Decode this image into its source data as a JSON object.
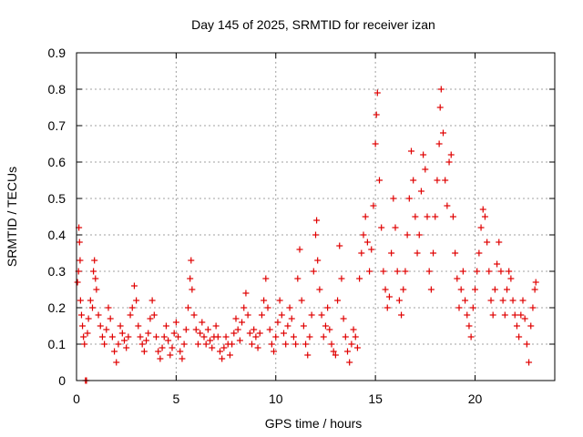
{
  "chart_data": {
    "type": "scatter",
    "title": "Day 145 of 2025, SRMTID for receiver izan",
    "xlabel": "GPS time / hours",
    "ylabel": "SRMTID / TECUs",
    "xlim": [
      0,
      24
    ],
    "ylim": [
      0,
      0.9
    ],
    "xticks": [
      0,
      5,
      10,
      15,
      20
    ],
    "yticks": [
      0,
      0.1,
      0.2,
      0.3,
      0.4,
      0.5,
      0.6,
      0.7,
      0.8,
      0.9
    ],
    "x_tick_labels": [
      "0",
      "5",
      "10",
      "15",
      "20"
    ],
    "y_tick_labels": [
      "0",
      "0.1",
      "0.2",
      "0.3",
      "0.4",
      "0.5",
      "0.6",
      "0.7",
      "0.8",
      "0.9"
    ],
    "grid": true,
    "marker": "+",
    "color": "#e00000",
    "series": [
      {
        "name": "SRMTID",
        "points": [
          [
            0.05,
            0.27
          ],
          [
            0.1,
            0.3
          ],
          [
            0.12,
            0.42
          ],
          [
            0.15,
            0.38
          ],
          [
            0.18,
            0.33
          ],
          [
            0.2,
            0.22
          ],
          [
            0.25,
            0.18
          ],
          [
            0.3,
            0.15
          ],
          [
            0.35,
            0.12
          ],
          [
            0.4,
            0.1
          ],
          [
            0.45,
            0.0
          ],
          [
            0.5,
            0.0
          ],
          [
            0.55,
            0.13
          ],
          [
            0.6,
            0.17
          ],
          [
            0.7,
            0.22
          ],
          [
            0.8,
            0.2
          ],
          [
            0.85,
            0.3
          ],
          [
            0.9,
            0.33
          ],
          [
            0.95,
            0.28
          ],
          [
            1.0,
            0.25
          ],
          [
            1.1,
            0.18
          ],
          [
            1.2,
            0.15
          ],
          [
            1.3,
            0.12
          ],
          [
            1.4,
            0.1
          ],
          [
            1.5,
            0.14
          ],
          [
            1.6,
            0.2
          ],
          [
            1.7,
            0.17
          ],
          [
            1.8,
            0.12
          ],
          [
            1.9,
            0.08
          ],
          [
            2.0,
            0.05
          ],
          [
            2.1,
            0.1
          ],
          [
            2.2,
            0.15
          ],
          [
            2.3,
            0.13
          ],
          [
            2.4,
            0.11
          ],
          [
            2.5,
            0.09
          ],
          [
            2.6,
            0.12
          ],
          [
            2.7,
            0.18
          ],
          [
            2.8,
            0.2
          ],
          [
            2.9,
            0.26
          ],
          [
            3.0,
            0.22
          ],
          [
            3.1,
            0.15
          ],
          [
            3.2,
            0.12
          ],
          [
            3.3,
            0.1
          ],
          [
            3.4,
            0.08
          ],
          [
            3.5,
            0.11
          ],
          [
            3.6,
            0.13
          ],
          [
            3.7,
            0.17
          ],
          [
            3.8,
            0.22
          ],
          [
            3.9,
            0.18
          ],
          [
            4.0,
            0.12
          ],
          [
            4.1,
            0.08
          ],
          [
            4.2,
            0.06
          ],
          [
            4.3,
            0.09
          ],
          [
            4.4,
            0.12
          ],
          [
            4.5,
            0.15
          ],
          [
            4.6,
            0.11
          ],
          [
            4.7,
            0.07
          ],
          [
            4.8,
            0.09
          ],
          [
            4.9,
            0.13
          ],
          [
            5.0,
            0.16
          ],
          [
            5.1,
            0.12
          ],
          [
            5.2,
            0.08
          ],
          [
            5.3,
            0.06
          ],
          [
            5.4,
            0.1
          ],
          [
            5.5,
            0.14
          ],
          [
            5.6,
            0.2
          ],
          [
            5.7,
            0.28
          ],
          [
            5.75,
            0.33
          ],
          [
            5.8,
            0.25
          ],
          [
            5.9,
            0.18
          ],
          [
            6.0,
            0.14
          ],
          [
            6.1,
            0.1
          ],
          [
            6.2,
            0.13
          ],
          [
            6.3,
            0.16
          ],
          [
            6.4,
            0.12
          ],
          [
            6.5,
            0.1
          ],
          [
            6.6,
            0.14
          ],
          [
            6.7,
            0.11
          ],
          [
            6.8,
            0.09
          ],
          [
            6.9,
            0.12
          ],
          [
            7.0,
            0.15
          ],
          [
            7.1,
            0.12
          ],
          [
            7.2,
            0.08
          ],
          [
            7.3,
            0.06
          ],
          [
            7.4,
            0.09
          ],
          [
            7.5,
            0.12
          ],
          [
            7.6,
            0.1
          ],
          [
            7.7,
            0.07
          ],
          [
            7.8,
            0.1
          ],
          [
            7.9,
            0.13
          ],
          [
            8.0,
            0.17
          ],
          [
            8.1,
            0.14
          ],
          [
            8.2,
            0.11
          ],
          [
            8.3,
            0.16
          ],
          [
            8.4,
            0.2
          ],
          [
            8.5,
            0.24
          ],
          [
            8.6,
            0.18
          ],
          [
            8.7,
            0.13
          ],
          [
            8.8,
            0.1
          ],
          [
            8.9,
            0.14
          ],
          [
            9.0,
            0.12
          ],
          [
            9.1,
            0.09
          ],
          [
            9.2,
            0.13
          ],
          [
            9.3,
            0.18
          ],
          [
            9.4,
            0.22
          ],
          [
            9.5,
            0.28
          ],
          [
            9.6,
            0.2
          ],
          [
            9.7,
            0.14
          ],
          [
            9.8,
            0.1
          ],
          [
            9.9,
            0.08
          ],
          [
            10.0,
            0.12
          ],
          [
            10.1,
            0.16
          ],
          [
            10.2,
            0.22
          ],
          [
            10.3,
            0.18
          ],
          [
            10.4,
            0.13
          ],
          [
            10.5,
            0.1
          ],
          [
            10.6,
            0.15
          ],
          [
            10.7,
            0.2
          ],
          [
            10.8,
            0.17
          ],
          [
            10.9,
            0.12
          ],
          [
            11.0,
            0.1
          ],
          [
            11.1,
            0.28
          ],
          [
            11.2,
            0.36
          ],
          [
            11.3,
            0.22
          ],
          [
            11.4,
            0.15
          ],
          [
            11.5,
            0.1
          ],
          [
            11.6,
            0.07
          ],
          [
            11.7,
            0.12
          ],
          [
            11.8,
            0.18
          ],
          [
            11.9,
            0.3
          ],
          [
            12.0,
            0.4
          ],
          [
            12.05,
            0.44
          ],
          [
            12.1,
            0.33
          ],
          [
            12.2,
            0.25
          ],
          [
            12.3,
            0.18
          ],
          [
            12.4,
            0.12
          ],
          [
            12.5,
            0.15
          ],
          [
            12.6,
            0.2
          ],
          [
            12.7,
            0.14
          ],
          [
            12.8,
            0.1
          ],
          [
            12.9,
            0.08
          ],
          [
            13.0,
            0.07
          ],
          [
            13.1,
            0.22
          ],
          [
            13.2,
            0.37
          ],
          [
            13.3,
            0.28
          ],
          [
            13.4,
            0.17
          ],
          [
            13.5,
            0.12
          ],
          [
            13.6,
            0.08
          ],
          [
            13.7,
            0.05
          ],
          [
            13.8,
            0.1
          ],
          [
            13.9,
            0.14
          ],
          [
            14.0,
            0.12
          ],
          [
            14.1,
            0.09
          ],
          [
            14.2,
            0.28
          ],
          [
            14.3,
            0.35
          ],
          [
            14.4,
            0.4
          ],
          [
            14.5,
            0.45
          ],
          [
            14.6,
            0.38
          ],
          [
            14.7,
            0.3
          ],
          [
            14.8,
            0.36
          ],
          [
            14.9,
            0.48
          ],
          [
            15.0,
            0.65
          ],
          [
            15.05,
            0.73
          ],
          [
            15.1,
            0.79
          ],
          [
            15.2,
            0.55
          ],
          [
            15.3,
            0.42
          ],
          [
            15.4,
            0.3
          ],
          [
            15.5,
            0.25
          ],
          [
            15.6,
            0.2
          ],
          [
            15.7,
            0.23
          ],
          [
            15.8,
            0.35
          ],
          [
            15.9,
            0.5
          ],
          [
            16.0,
            0.42
          ],
          [
            16.1,
            0.3
          ],
          [
            16.2,
            0.22
          ],
          [
            16.3,
            0.18
          ],
          [
            16.4,
            0.25
          ],
          [
            16.5,
            0.3
          ],
          [
            16.6,
            0.4
          ],
          [
            16.7,
            0.5
          ],
          [
            16.8,
            0.63
          ],
          [
            16.9,
            0.55
          ],
          [
            17.0,
            0.45
          ],
          [
            17.1,
            0.35
          ],
          [
            17.2,
            0.4
          ],
          [
            17.3,
            0.52
          ],
          [
            17.4,
            0.62
          ],
          [
            17.5,
            0.58
          ],
          [
            17.6,
            0.45
          ],
          [
            17.7,
            0.3
          ],
          [
            17.8,
            0.25
          ],
          [
            17.9,
            0.35
          ],
          [
            18.0,
            0.45
          ],
          [
            18.1,
            0.55
          ],
          [
            18.2,
            0.65
          ],
          [
            18.25,
            0.75
          ],
          [
            18.3,
            0.8
          ],
          [
            18.4,
            0.68
          ],
          [
            18.5,
            0.55
          ],
          [
            18.6,
            0.48
          ],
          [
            18.7,
            0.6
          ],
          [
            18.8,
            0.62
          ],
          [
            18.9,
            0.45
          ],
          [
            19.0,
            0.35
          ],
          [
            19.1,
            0.28
          ],
          [
            19.2,
            0.2
          ],
          [
            19.3,
            0.25
          ],
          [
            19.4,
            0.3
          ],
          [
            19.5,
            0.22
          ],
          [
            19.6,
            0.18
          ],
          [
            19.7,
            0.15
          ],
          [
            19.8,
            0.12
          ],
          [
            19.9,
            0.2
          ],
          [
            20.0,
            0.25
          ],
          [
            20.1,
            0.3
          ],
          [
            20.2,
            0.35
          ],
          [
            20.3,
            0.42
          ],
          [
            20.4,
            0.47
          ],
          [
            20.5,
            0.45
          ],
          [
            20.6,
            0.38
          ],
          [
            20.7,
            0.3
          ],
          [
            20.8,
            0.22
          ],
          [
            20.9,
            0.18
          ],
          [
            21.0,
            0.25
          ],
          [
            21.1,
            0.32
          ],
          [
            21.2,
            0.38
          ],
          [
            21.3,
            0.3
          ],
          [
            21.4,
            0.22
          ],
          [
            21.5,
            0.18
          ],
          [
            21.6,
            0.25
          ],
          [
            21.7,
            0.3
          ],
          [
            21.8,
            0.28
          ],
          [
            21.9,
            0.22
          ],
          [
            22.0,
            0.18
          ],
          [
            22.1,
            0.15
          ],
          [
            22.2,
            0.12
          ],
          [
            22.3,
            0.18
          ],
          [
            22.4,
            0.22
          ],
          [
            22.5,
            0.17
          ],
          [
            22.6,
            0.1
          ],
          [
            22.7,
            0.05
          ],
          [
            22.8,
            0.15
          ],
          [
            22.9,
            0.2
          ],
          [
            23.0,
            0.25
          ],
          [
            23.05,
            0.27
          ]
        ]
      }
    ]
  }
}
